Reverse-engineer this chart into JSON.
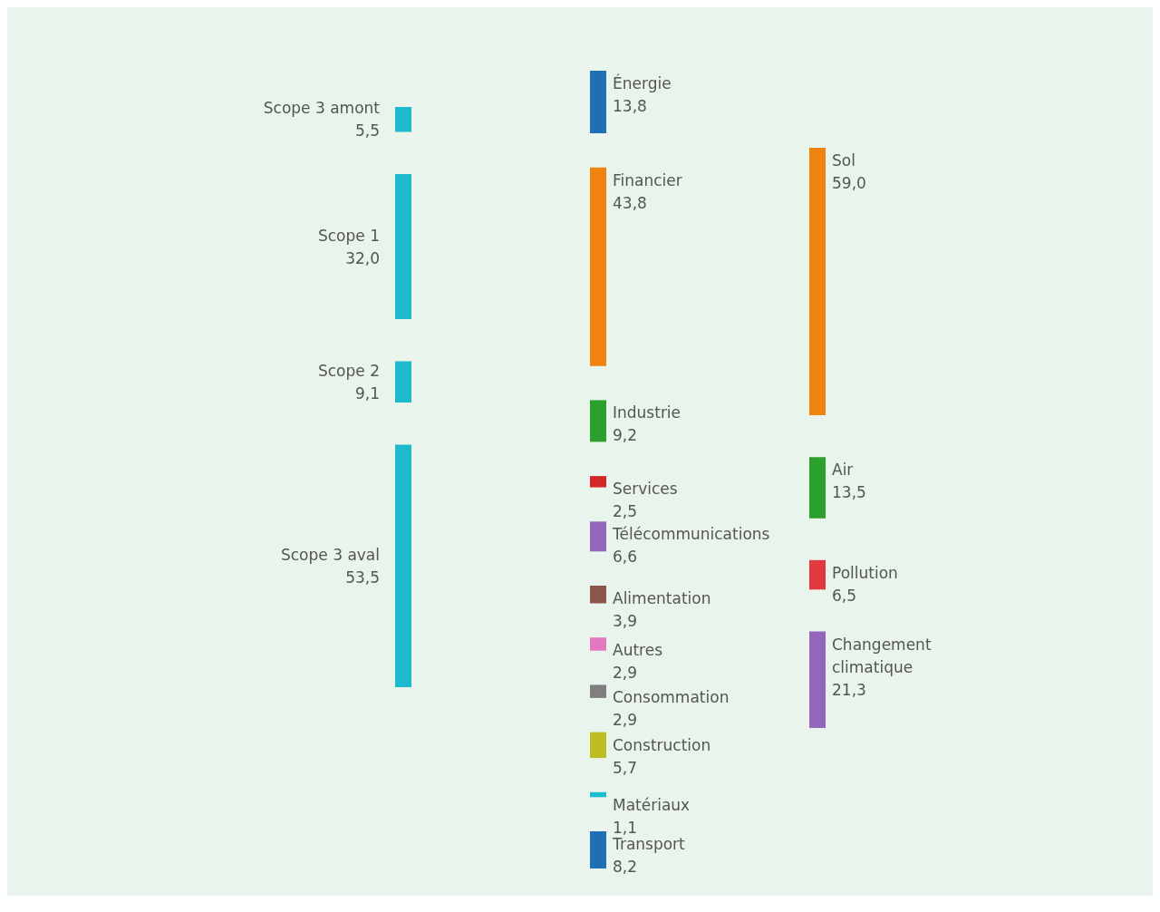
{
  "chart_data": [
    {
      "type": "other",
      "categories": [
        "Scope 3 amont",
        "Scope 1",
        "Scope 2",
        "Scope 3 aval"
      ],
      "values": [
        5.5,
        32.0,
        9.1,
        53.5
      ],
      "value_labels": [
        "5,5",
        "32,0",
        "9,1",
        "53,5"
      ],
      "colors": [
        "#1fb9cd",
        "#1fb9cd",
        "#1fb9cd",
        "#1fb9cd"
      ]
    },
    {
      "type": "other",
      "categories": [
        "Énergie",
        "Financier",
        "Industrie",
        "Services",
        "Télécommunications",
        "Alimentation",
        "Autres",
        "Consommation",
        "Construction",
        "Matériaux",
        "Transport"
      ],
      "values": [
        13.8,
        43.8,
        9.2,
        2.5,
        6.6,
        3.9,
        2.9,
        2.9,
        5.7,
        1.1,
        8.2
      ],
      "value_labels": [
        "13,8",
        "43,8",
        "9,2",
        "2,5",
        "6,6",
        "3,9",
        "2,9",
        "2,9",
        "5,7",
        "1,1",
        "8,2"
      ],
      "colors": [
        "#1f6fb4",
        "#f0820f",
        "#2ca02c",
        "#d62728",
        "#9467bd",
        "#8c564b",
        "#e377c2",
        "#7f7f7f",
        "#bcbd22",
        "#17becf",
        "#1f6fb4"
      ]
    },
    {
      "type": "other",
      "categories": [
        "Sol",
        "Air",
        "Pollution",
        "Changement climatique"
      ],
      "values": [
        59.0,
        13.5,
        6.5,
        21.3
      ],
      "value_labels": [
        "59,0",
        "13,5",
        "6,5",
        "21,3"
      ],
      "colors": [
        "#f0820f",
        "#2ca02c",
        "#e0393e",
        "#9467bd"
      ]
    }
  ]
}
